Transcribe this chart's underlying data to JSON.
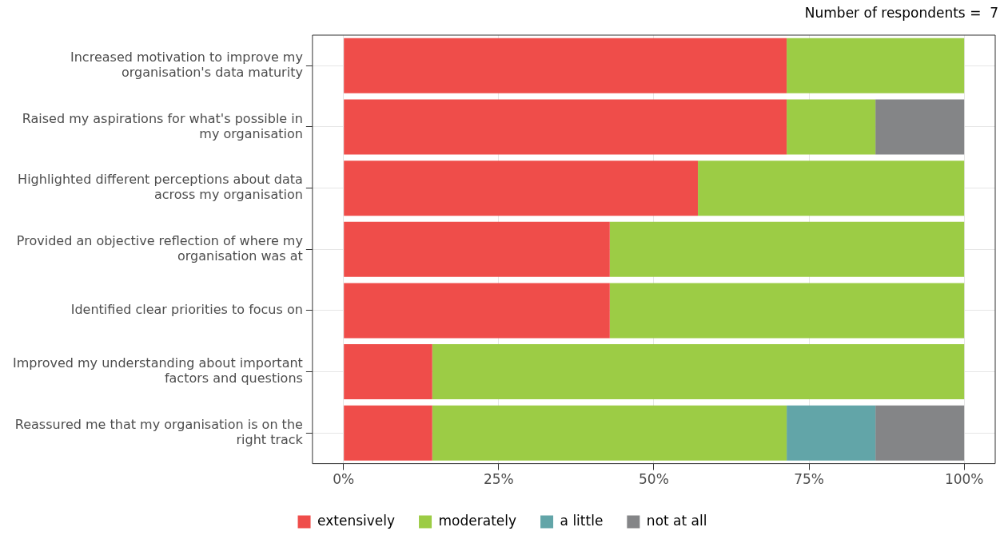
{
  "chart_data": {
    "type": "bar",
    "orientation": "horizontal",
    "stacked": true,
    "annotations": [
      "Number of respondents =  7"
    ],
    "categories": [
      "Increased motivation to improve my organisation's data maturity",
      "Raised my aspirations for what's possible in my organisation",
      "Highlighted different perceptions about data across my organisation",
      "Provided an objective reflection of where my organisation was at",
      "Identified clear priorities to focus on",
      "Improved my understanding about important factors and questions",
      "Reassured me that my organisation is on the right track"
    ],
    "series": [
      {
        "name": "extensively",
        "color": "#ef4d4a",
        "values": [
          71.4,
          71.4,
          57.1,
          42.9,
          42.9,
          14.3,
          14.3
        ]
      },
      {
        "name": "moderately",
        "color": "#9ccc45",
        "values": [
          28.6,
          14.3,
          42.9,
          57.1,
          57.1,
          85.7,
          57.1
        ]
      },
      {
        "name": "a little",
        "color": "#62a5a8",
        "values": [
          null,
          null,
          null,
          null,
          null,
          null,
          14.3
        ]
      },
      {
        "name": "not at all",
        "color": "#848587",
        "values": [
          null,
          14.3,
          null,
          null,
          null,
          null,
          14.3
        ]
      }
    ],
    "xlim": [
      -5,
      105
    ],
    "xticks": [
      {
        "value": 0,
        "label": "0%"
      },
      {
        "value": 25,
        "label": "25%"
      },
      {
        "value": 50,
        "label": "50%"
      },
      {
        "value": 75,
        "label": "75%"
      },
      {
        "value": 100,
        "label": "100%"
      }
    ],
    "grid": true,
    "legend": "bottom"
  }
}
